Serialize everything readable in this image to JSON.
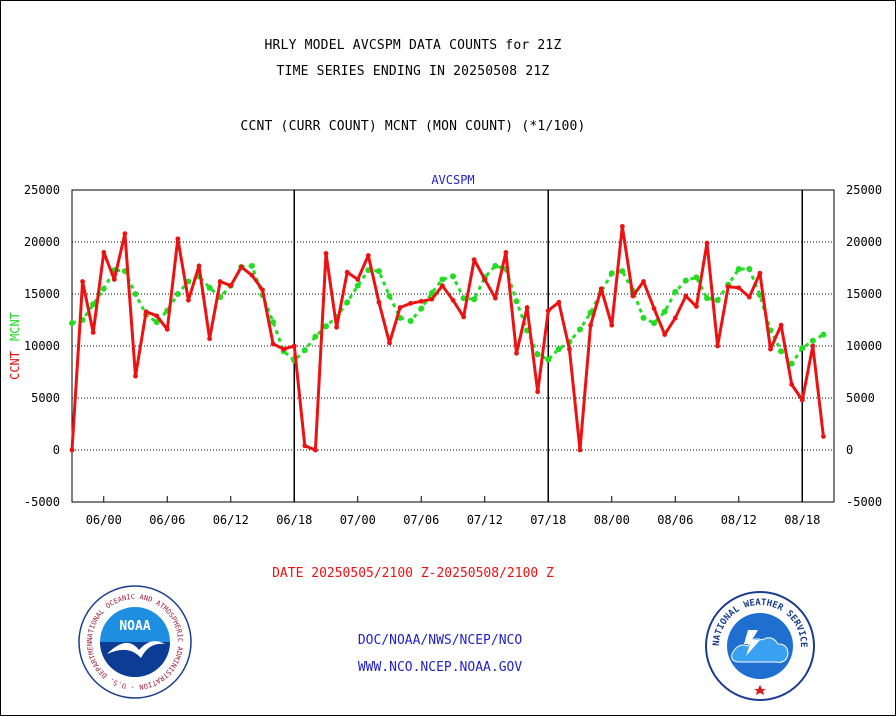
{
  "header": {
    "line1": "HRLY MODEL AVCSPM DATA COUNTS for 21Z",
    "line2": "TIME SERIES ENDING IN 20250508 21Z",
    "line3": "CCNT (CURR COUNT) MCNT (MON COUNT) (*1/100)"
  },
  "footer": {
    "date_range": "DATE 20250505/2100 Z-20250508/2100 Z",
    "org_line": "DOC/NOAA/NWS/NCEP/NCO",
    "url_line": "WWW.NCO.NCEP.NOAA.GOV"
  },
  "logos": {
    "left": {
      "word": "NOAA",
      "ring_text": "NATIONAL OCEANIC AND ATMOSPHERIC ADMINISTRATION · U.S. DEPARTMENT OF COMMERCE ·"
    },
    "right": {
      "ring_text": "NATIONAL WEATHER SERVICE"
    }
  },
  "chart_data": {
    "type": "line",
    "title": "AVCSPM",
    "ylabel_ccnt": "CCNT",
    "ylabel_mcnt": "MCNT",
    "ylim": [
      -5000,
      25000
    ],
    "yticks": [
      -5000,
      0,
      5000,
      10000,
      15000,
      20000,
      25000
    ],
    "x_tick_labels": [
      "06/00",
      "06/06",
      "06/12",
      "06/18",
      "07/00",
      "07/06",
      "07/12",
      "07/18",
      "08/00",
      "08/06",
      "08/12",
      "08/18"
    ],
    "x_ticks_hours_from_start": [
      3,
      9,
      15,
      21,
      27,
      33,
      39,
      45,
      51,
      57,
      63,
      69
    ],
    "x_range_hours": [
      0,
      72
    ],
    "day_boundaries_hours": [
      21,
      45,
      69
    ],
    "grid": "horizontal dotted",
    "colors": {
      "ccnt": "#ee1111",
      "mcnt": "#22dd22",
      "axis": "#000000",
      "title": "#2222cc"
    },
    "series": [
      {
        "name": "CCNT",
        "style": "solid",
        "values": [
          0,
          16200,
          11300,
          19000,
          16400,
          20800,
          7100,
          13300,
          12900,
          11600,
          20300,
          14400,
          17700,
          10700,
          16200,
          15800,
          17600,
          16800,
          15400,
          10200,
          9700,
          10000,
          400,
          0,
          18900,
          11800,
          17100,
          16400,
          18700,
          14200,
          10300,
          13700,
          14100,
          14300,
          14500,
          15800,
          14400,
          12800,
          18300,
          16400,
          14600,
          19000,
          9300,
          13700,
          5600,
          13400,
          14200,
          9700,
          0,
          12000,
          15500,
          12000,
          21500,
          14800,
          16200,
          13600,
          11100,
          12700,
          14800,
          13800,
          19900,
          10000,
          15700,
          15600,
          14700,
          17000,
          9700,
          12000,
          6300,
          4800,
          10000,
          1300
        ]
      },
      {
        "name": "MCNT",
        "style": "dotted",
        "values": [
          12200,
          12500,
          14000,
          15500,
          17300,
          17200,
          15000,
          13000,
          12300,
          13400,
          15000,
          16200,
          16700,
          15600,
          14700,
          15800,
          17600,
          17700,
          14900,
          12300,
          9500,
          8600,
          9600,
          10900,
          11900,
          12800,
          14200,
          15800,
          17300,
          17200,
          14800,
          12700,
          12400,
          13600,
          15100,
          16400,
          16700,
          14600,
          14500,
          16600,
          17700,
          17400,
          14300,
          11500,
          9200,
          8700,
          9700,
          10400,
          11600,
          13200,
          15200,
          17000,
          17200,
          15300,
          12700,
          12200,
          13300,
          15200,
          16300,
          16600,
          14600,
          14400,
          15900,
          17400,
          17400,
          14900,
          11500,
          9500,
          8300,
          9800,
          10500,
          11100
        ]
      }
    ]
  }
}
